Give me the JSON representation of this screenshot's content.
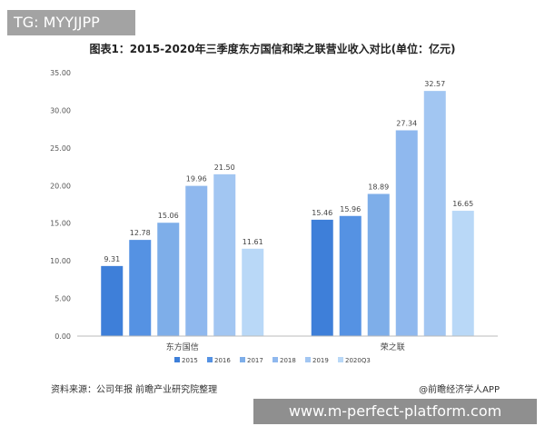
{
  "overlay_tag": "TG: MYYJJPP",
  "footer": {
    "source": "资料来源：公司年报 前瞻产业研究院整理",
    "brand": "@前瞻经济学人APP",
    "url": "www.m-perfect-platform.com"
  },
  "chart_data": {
    "type": "bar",
    "title": "图表1：2015-2020年三季度东方国信和荣之联营业收入对比(单位：亿元)",
    "categories": [
      "东方国信",
      "荣之联"
    ],
    "series": [
      {
        "name": "2015",
        "color": "#3e7fd9",
        "values": [
          9.31,
          15.46
        ]
      },
      {
        "name": "2016",
        "color": "#5592e3",
        "values": [
          12.78,
          15.96
        ]
      },
      {
        "name": "2017",
        "color": "#7eaee9",
        "values": [
          15.06,
          18.89
        ]
      },
      {
        "name": "2018",
        "color": "#8fb8ee",
        "values": [
          19.96,
          27.34
        ]
      },
      {
        "name": "2019",
        "color": "#a2c6f2",
        "values": [
          21.5,
          32.57
        ]
      },
      {
        "name": "2020Q3",
        "color": "#b9d8f7",
        "values": [
          11.61,
          16.65
        ]
      }
    ],
    "value_labels": [
      [
        "9.31",
        "12.78",
        "15.06",
        "19.96",
        "21.50",
        "11.61"
      ],
      [
        "15.46",
        "15.96",
        "18.89",
        "27.34",
        "32.57",
        "16.65"
      ]
    ],
    "yticks": [
      "0.00",
      "5.00",
      "10.00",
      "15.00",
      "20.00",
      "25.00",
      "30.00",
      "35.00"
    ],
    "ylim": [
      0,
      35
    ],
    "grid": false,
    "legend_position": "bottom"
  }
}
